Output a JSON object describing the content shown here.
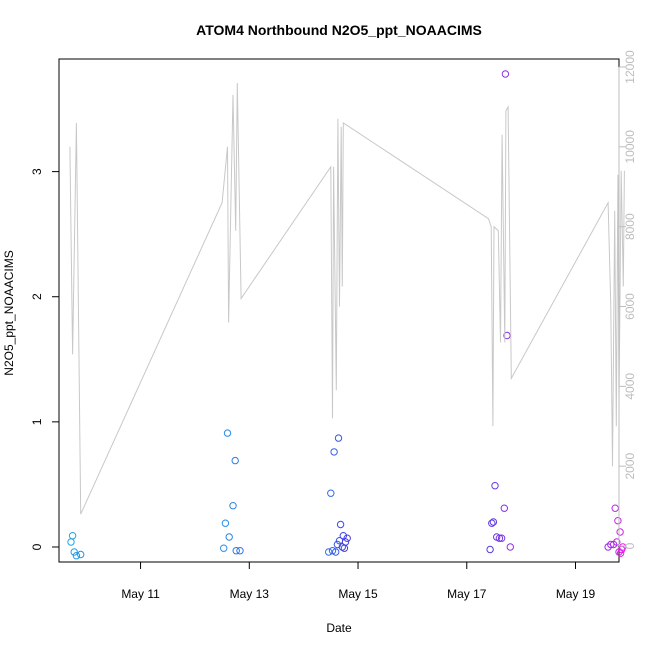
{
  "chart_data": {
    "type": "scatter",
    "title": "ATOM4 Northbound N2O5_ppt_NOAACIMS",
    "xlabel": "Date",
    "ylabel": "N2O5_ppt_NOAACIMS",
    "x_ticks": [
      "May 11",
      "May 13",
      "May 15",
      "May 17",
      "May 19"
    ],
    "y_ticks": [
      "0",
      "1",
      "2",
      "3"
    ],
    "y2_ticks": [
      "0",
      "2000",
      "4000",
      "6000",
      "8000",
      "10000",
      "12000"
    ],
    "xlim": [
      9.5,
      19.8
    ],
    "ylim": [
      -0.12,
      3.9
    ],
    "y2lim": [
      -400,
      12200
    ],
    "colors": {
      "scatter_start": "#1ea7e8",
      "scatter_mid": "#3f3fe6",
      "scatter_end": "#e61ee6",
      "line": "#c8c8c8",
      "y2_axis": "#bdbdbd"
    },
    "series": [
      {
        "kind": "points",
        "points": [
          [
            9.72,
            0.04
          ],
          [
            9.75,
            0.09
          ],
          [
            9.78,
            -0.04
          ],
          [
            9.82,
            -0.07
          ],
          [
            9.9,
            -0.06
          ],
          [
            12.53,
            -0.01
          ],
          [
            12.56,
            0.19
          ],
          [
            12.6,
            0.91
          ],
          [
            12.63,
            0.08
          ],
          [
            12.7,
            0.33
          ],
          [
            12.74,
            0.69
          ],
          [
            12.76,
            -0.03
          ],
          [
            12.83,
            -0.03
          ],
          [
            14.46,
            -0.04
          ],
          [
            14.5,
            0.43
          ],
          [
            14.53,
            -0.03
          ],
          [
            14.56,
            0.76
          ],
          [
            14.59,
            -0.04
          ],
          [
            14.62,
            0.02
          ],
          [
            14.64,
            0.87
          ],
          [
            14.66,
            0.05
          ],
          [
            14.68,
            0.18
          ],
          [
            14.71,
            0.0
          ],
          [
            14.73,
            0.09
          ],
          [
            14.75,
            -0.01
          ],
          [
            14.77,
            0.04
          ],
          [
            14.8,
            0.07
          ],
          [
            17.43,
            -0.02
          ],
          [
            17.46,
            0.19
          ],
          [
            17.49,
            0.2
          ],
          [
            17.52,
            0.49
          ],
          [
            17.55,
            0.08
          ],
          [
            17.6,
            0.07
          ],
          [
            17.64,
            0.07
          ],
          [
            17.69,
            0.31
          ],
          [
            17.71,
            3.78
          ],
          [
            17.74,
            1.69
          ],
          [
            17.8,
            0.0
          ],
          [
            19.6,
            0.0
          ],
          [
            19.65,
            0.02
          ],
          [
            19.7,
            0.02
          ],
          [
            19.73,
            0.31
          ],
          [
            19.76,
            0.04
          ],
          [
            19.78,
            0.21
          ],
          [
            19.8,
            -0.04
          ],
          [
            19.82,
            0.12
          ],
          [
            19.83,
            -0.05
          ],
          [
            19.85,
            -0.02
          ],
          [
            19.87,
            0.0
          ]
        ]
      },
      {
        "kind": "line",
        "points": [
          [
            9.7,
            10000
          ],
          [
            9.75,
            4800
          ],
          [
            9.82,
            10600
          ],
          [
            9.9,
            800
          ],
          [
            12.5,
            8600
          ],
          [
            12.6,
            10000
          ],
          [
            12.62,
            5600
          ],
          [
            12.7,
            11300
          ],
          [
            12.75,
            7900
          ],
          [
            12.78,
            11600
          ],
          [
            12.85,
            6200
          ],
          [
            14.5,
            9500
          ],
          [
            14.53,
            3200
          ],
          [
            14.55,
            9500
          ],
          [
            14.6,
            3900
          ],
          [
            14.63,
            10700
          ],
          [
            14.66,
            6000
          ],
          [
            14.69,
            10500
          ],
          [
            14.71,
            6500
          ],
          [
            14.73,
            10600
          ],
          [
            17.4,
            8200
          ],
          [
            17.45,
            8000
          ],
          [
            17.48,
            3000
          ],
          [
            17.5,
            8000
          ],
          [
            17.58,
            7900
          ],
          [
            17.62,
            5100
          ],
          [
            17.65,
            10300
          ],
          [
            17.7,
            5100
          ],
          [
            17.72,
            10900
          ],
          [
            17.76,
            11000
          ],
          [
            17.82,
            4200
          ],
          [
            19.6,
            8600
          ],
          [
            19.65,
            6000
          ],
          [
            19.68,
            2000
          ],
          [
            19.72,
            8400
          ],
          [
            19.75,
            3000
          ],
          [
            19.78,
            9300
          ],
          [
            19.8,
            3600
          ],
          [
            19.84,
            9400
          ],
          [
            19.88,
            6500
          ],
          [
            19.9,
            9400
          ]
        ]
      }
    ]
  }
}
